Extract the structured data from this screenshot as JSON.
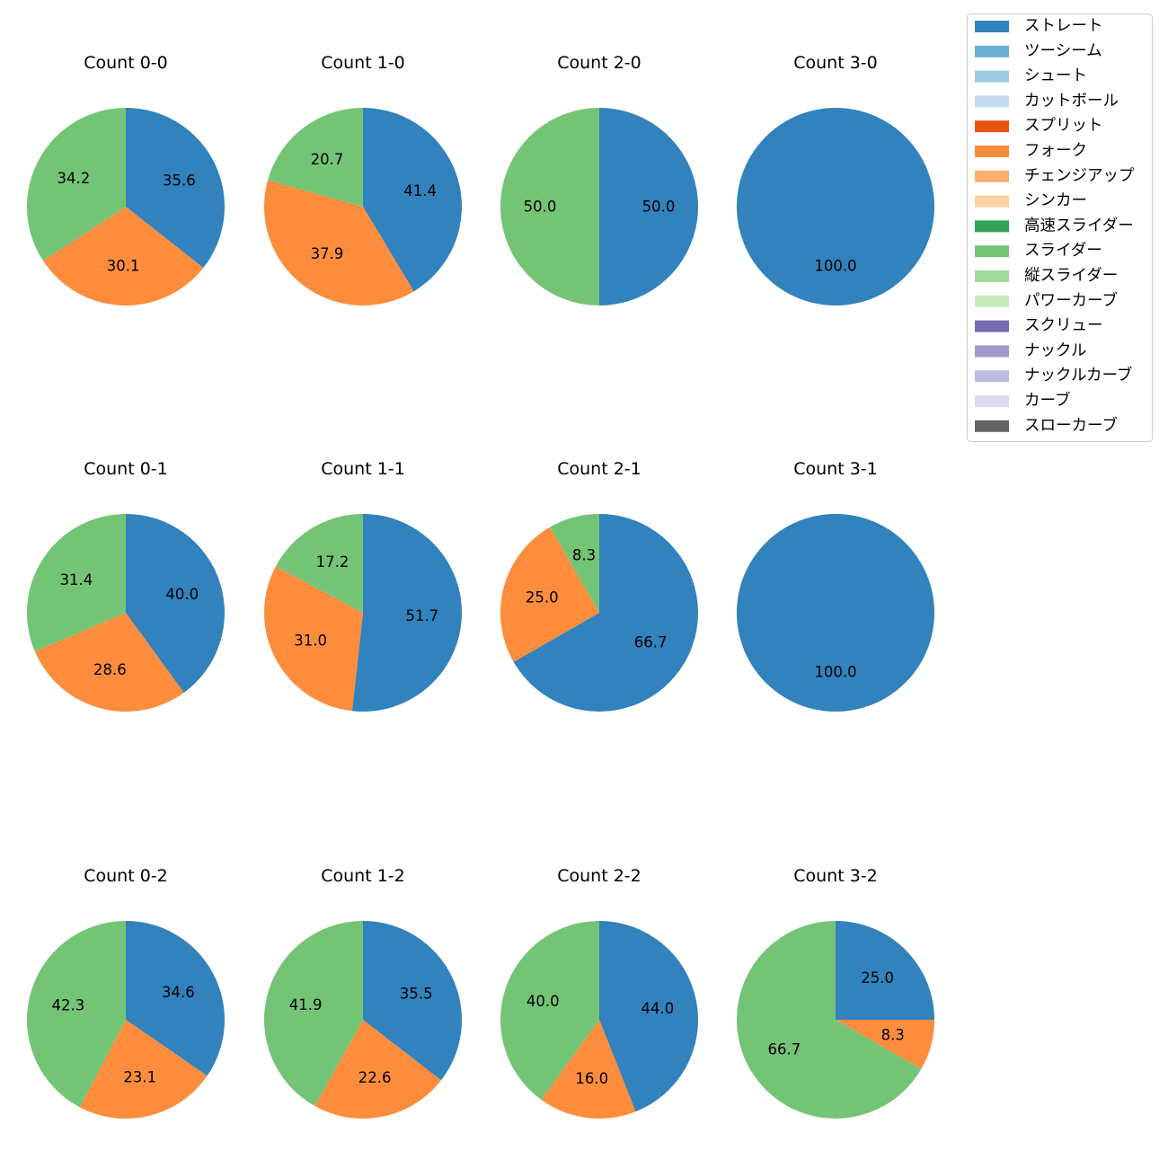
{
  "colors": {
    "ストレート": "#3182bd",
    "ツーシーム": "#6baed6",
    "シュート": "#9ecae1",
    "カットボール": "#c6dbef",
    "スプリット": "#e6550d",
    "フォーク": "#fd8d3c",
    "チェンジアップ": "#fdae6b",
    "シンカー": "#fdd0a2",
    "高速スライダー": "#31a354",
    "スライダー": "#74c476",
    "縦スライダー": "#a1d99b",
    "パワーカーブ": "#c7e9c0",
    "スクリュー": "#756bb1",
    "ナックル": "#9e9ac8",
    "ナックルカーブ": "#bcbddc",
    "カーブ": "#dadaeb",
    "スローカーブ": "#636363"
  },
  "chart_data": {
    "type": "pie",
    "legend_position": "top-right",
    "legend": [
      "ストレート",
      "ツーシーム",
      "シュート",
      "カットボール",
      "スプリット",
      "フォーク",
      "チェンジアップ",
      "シンカー",
      "高速スライダー",
      "スライダー",
      "縦スライダー",
      "パワーカーブ",
      "スクリュー",
      "ナックル",
      "ナックルカーブ",
      "カーブ",
      "スローカーブ"
    ],
    "charts": [
      {
        "title": "Count 0-0",
        "slices": [
          {
            "label": "ストレート",
            "value": 35.6
          },
          {
            "label": "フォーク",
            "value": 30.1
          },
          {
            "label": "スライダー",
            "value": 34.2
          }
        ],
        "labels": [
          "35.6",
          "30.1",
          "34.2"
        ]
      },
      {
        "title": "Count 1-0",
        "slices": [
          {
            "label": "ストレート",
            "value": 41.4
          },
          {
            "label": "フォーク",
            "value": 37.9
          },
          {
            "label": "スライダー",
            "value": 20.7
          }
        ],
        "labels": [
          "41.4",
          "37.9",
          "20.7"
        ]
      },
      {
        "title": "Count 2-0",
        "slices": [
          {
            "label": "ストレート",
            "value": 50.0
          },
          {
            "label": "スライダー",
            "value": 50.0
          }
        ],
        "labels": [
          "50.0",
          "50.0"
        ]
      },
      {
        "title": "Count 3-0",
        "slices": [
          {
            "label": "ストレート",
            "value": 100.0
          }
        ],
        "labels": [
          "100.0"
        ]
      },
      {
        "title": "Count 0-1",
        "slices": [
          {
            "label": "ストレート",
            "value": 40.0
          },
          {
            "label": "フォーク",
            "value": 28.6
          },
          {
            "label": "スライダー",
            "value": 31.4
          }
        ],
        "labels": [
          "40.0",
          "28.6",
          "31.4"
        ]
      },
      {
        "title": "Count 1-1",
        "slices": [
          {
            "label": "ストレート",
            "value": 51.7
          },
          {
            "label": "フォーク",
            "value": 31.0
          },
          {
            "label": "スライダー",
            "value": 17.2
          }
        ],
        "labels": [
          "51.7",
          "31.0",
          "17.2"
        ]
      },
      {
        "title": "Count 2-1",
        "slices": [
          {
            "label": "ストレート",
            "value": 66.7
          },
          {
            "label": "フォーク",
            "value": 25.0
          },
          {
            "label": "スライダー",
            "value": 8.3
          }
        ],
        "labels": [
          "66.7",
          "25.0",
          "8.3"
        ]
      },
      {
        "title": "Count 3-1",
        "slices": [
          {
            "label": "ストレート",
            "value": 100.0
          }
        ],
        "labels": [
          "100.0"
        ]
      },
      {
        "title": "Count 0-2",
        "slices": [
          {
            "label": "ストレート",
            "value": 34.6
          },
          {
            "label": "フォーク",
            "value": 23.1
          },
          {
            "label": "スライダー",
            "value": 42.3
          }
        ],
        "labels": [
          "34.6",
          "23.1",
          "42.3"
        ]
      },
      {
        "title": "Count 1-2",
        "slices": [
          {
            "label": "ストレート",
            "value": 35.5
          },
          {
            "label": "フォーク",
            "value": 22.6
          },
          {
            "label": "スライダー",
            "value": 41.9
          }
        ],
        "labels": [
          "35.5",
          "22.6",
          "41.9"
        ]
      },
      {
        "title": "Count 2-2",
        "slices": [
          {
            "label": "ストレート",
            "value": 44.0
          },
          {
            "label": "フォーク",
            "value": 16.0
          },
          {
            "label": "スライダー",
            "value": 40.0
          }
        ],
        "labels": [
          "44.0",
          "16.0",
          "40.0"
        ]
      },
      {
        "title": "Count 3-2",
        "slices": [
          {
            "label": "ストレート",
            "value": 25.0
          },
          {
            "label": "フォーク",
            "value": 8.3
          },
          {
            "label": "スライダー",
            "value": 66.7
          }
        ],
        "labels": [
          "25.0",
          "8.3",
          "66.7"
        ]
      }
    ]
  }
}
